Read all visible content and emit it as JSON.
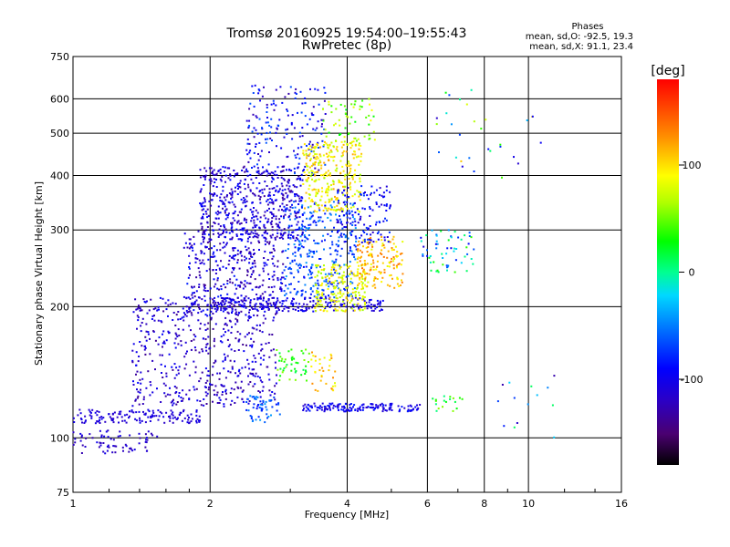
{
  "header": {
    "title_line1": "Tromsø 20160925 19:54:00–19:55:43",
    "title_line2": "RwPretec (8p)"
  },
  "stats": {
    "heading": "Phases",
    "o_line": "mean, sd,O: -92.5, 19.3",
    "x_line": "mean, sd,X:  91.1, 23.4"
  },
  "colorbar": {
    "label": "[deg]",
    "ticks": [
      {
        "value": 100,
        "label": "100"
      },
      {
        "value": 0,
        "label": "0"
      },
      {
        "value": -100,
        "label": "-100"
      }
    ],
    "range": [
      -180,
      180
    ]
  },
  "chart_data": {
    "type": "scatter",
    "title": "Tromsø 20160925 19:54:00–19:55:43",
    "subtitle": "RwPretec (8p)",
    "xlabel": "Frequency [MHz]",
    "ylabel": "Stationary phase Virtual Height [km]",
    "xscale": "log",
    "yscale": "log",
    "xlim": [
      1,
      16
    ],
    "ylim": [
      75,
      750
    ],
    "grid": true,
    "x_ticks": [
      {
        "value": 1,
        "label": "1"
      },
      {
        "value": 2,
        "label": "2"
      },
      {
        "value": 4,
        "label": "4"
      },
      {
        "value": 6,
        "label": "6"
      },
      {
        "value": 8,
        "label": "8"
      },
      {
        "value": 10,
        "label": "10"
      },
      {
        "value": 16,
        "label": "16"
      }
    ],
    "y_ticks": [
      {
        "value": 75,
        "label": "75"
      },
      {
        "value": 100,
        "label": "100"
      },
      {
        "value": 200,
        "label": "200"
      },
      {
        "value": 300,
        "label": "300"
      },
      {
        "value": 400,
        "label": "400"
      },
      {
        "value": 500,
        "label": "500"
      },
      {
        "value": 600,
        "label": "600"
      },
      {
        "value": 750,
        "label": "750"
      }
    ],
    "color_scale": "phase-deg",
    "clusters": [
      {
        "x": [
          1.0,
          1.9
        ],
        "y": [
          108,
          116
        ],
        "phase": [
          -120,
          -100
        ],
        "n": 140
      },
      {
        "x": [
          1.0,
          1.55
        ],
        "y": [
          92,
          104
        ],
        "phase": [
          -130,
          -100
        ],
        "n": 70
      },
      {
        "x": [
          1.35,
          2.8
        ],
        "y": [
          118,
          210
        ],
        "phase": [
          -140,
          -90
        ],
        "n": 520
      },
      {
        "x": [
          1.75,
          2.9
        ],
        "y": [
          190,
          300
        ],
        "phase": [
          -140,
          -80
        ],
        "n": 380
      },
      {
        "x": [
          1.9,
          3.2
        ],
        "y": [
          285,
          420
        ],
        "phase": [
          -135,
          -85
        ],
        "n": 520
      },
      {
        "x": [
          2.4,
          3.6
        ],
        "y": [
          400,
          650
        ],
        "phase": [
          -130,
          -60
        ],
        "n": 180
      },
      {
        "x": [
          2.0,
          4.8
        ],
        "y": [
          195,
          210
        ],
        "phase": [
          -120,
          -90
        ],
        "n": 220
      },
      {
        "x": [
          2.9,
          4.2
        ],
        "y": [
          210,
          350
        ],
        "phase": [
          -90,
          -40
        ],
        "n": 320
      },
      {
        "x": [
          3.2,
          4.3
        ],
        "y": [
          330,
          480
        ],
        "phase": [
          60,
          120
        ],
        "n": 300
      },
      {
        "x": [
          3.5,
          4.6
        ],
        "y": [
          480,
          600
        ],
        "phase": [
          20,
          90
        ],
        "n": 60
      },
      {
        "x": [
          3.4,
          4.4
        ],
        "y": [
          195,
          250
        ],
        "phase": [
          60,
          110
        ],
        "n": 200
      },
      {
        "x": [
          4.2,
          5.3
        ],
        "y": [
          220,
          290
        ],
        "phase": [
          80,
          140
        ],
        "n": 150
      },
      {
        "x": [
          3.8,
          5.0
        ],
        "y": [
          280,
          380
        ],
        "phase": [
          -120,
          -70
        ],
        "n": 130
      },
      {
        "x": [
          2.8,
          3.3
        ],
        "y": [
          135,
          160
        ],
        "phase": [
          10,
          60
        ],
        "n": 45
      },
      {
        "x": [
          3.3,
          3.8
        ],
        "y": [
          128,
          160
        ],
        "phase": [
          80,
          130
        ],
        "n": 35
      },
      {
        "x": [
          2.4,
          2.85
        ],
        "y": [
          108,
          125
        ],
        "phase": [
          -90,
          -40
        ],
        "n": 55
      },
      {
        "x": [
          3.2,
          5.8
        ],
        "y": [
          115,
          120
        ],
        "phase": [
          -120,
          -80
        ],
        "n": 160
      },
      {
        "x": [
          5.8,
          7.6
        ],
        "y": [
          240,
          300
        ],
        "phase": [
          -110,
          40
        ],
        "n": 60
      },
      {
        "x": [
          6.0,
          7.2
        ],
        "y": [
          115,
          125
        ],
        "phase": [
          0,
          60
        ],
        "n": 18
      },
      {
        "x": [
          6.2,
          11.6
        ],
        "y": [
          380,
          640
        ],
        "phase": [
          -130,
          120
        ],
        "n": 30
      },
      {
        "x": [
          8.5,
          11.6
        ],
        "y": [
          100,
          140
        ],
        "phase": [
          -130,
          40
        ],
        "n": 14
      }
    ]
  }
}
